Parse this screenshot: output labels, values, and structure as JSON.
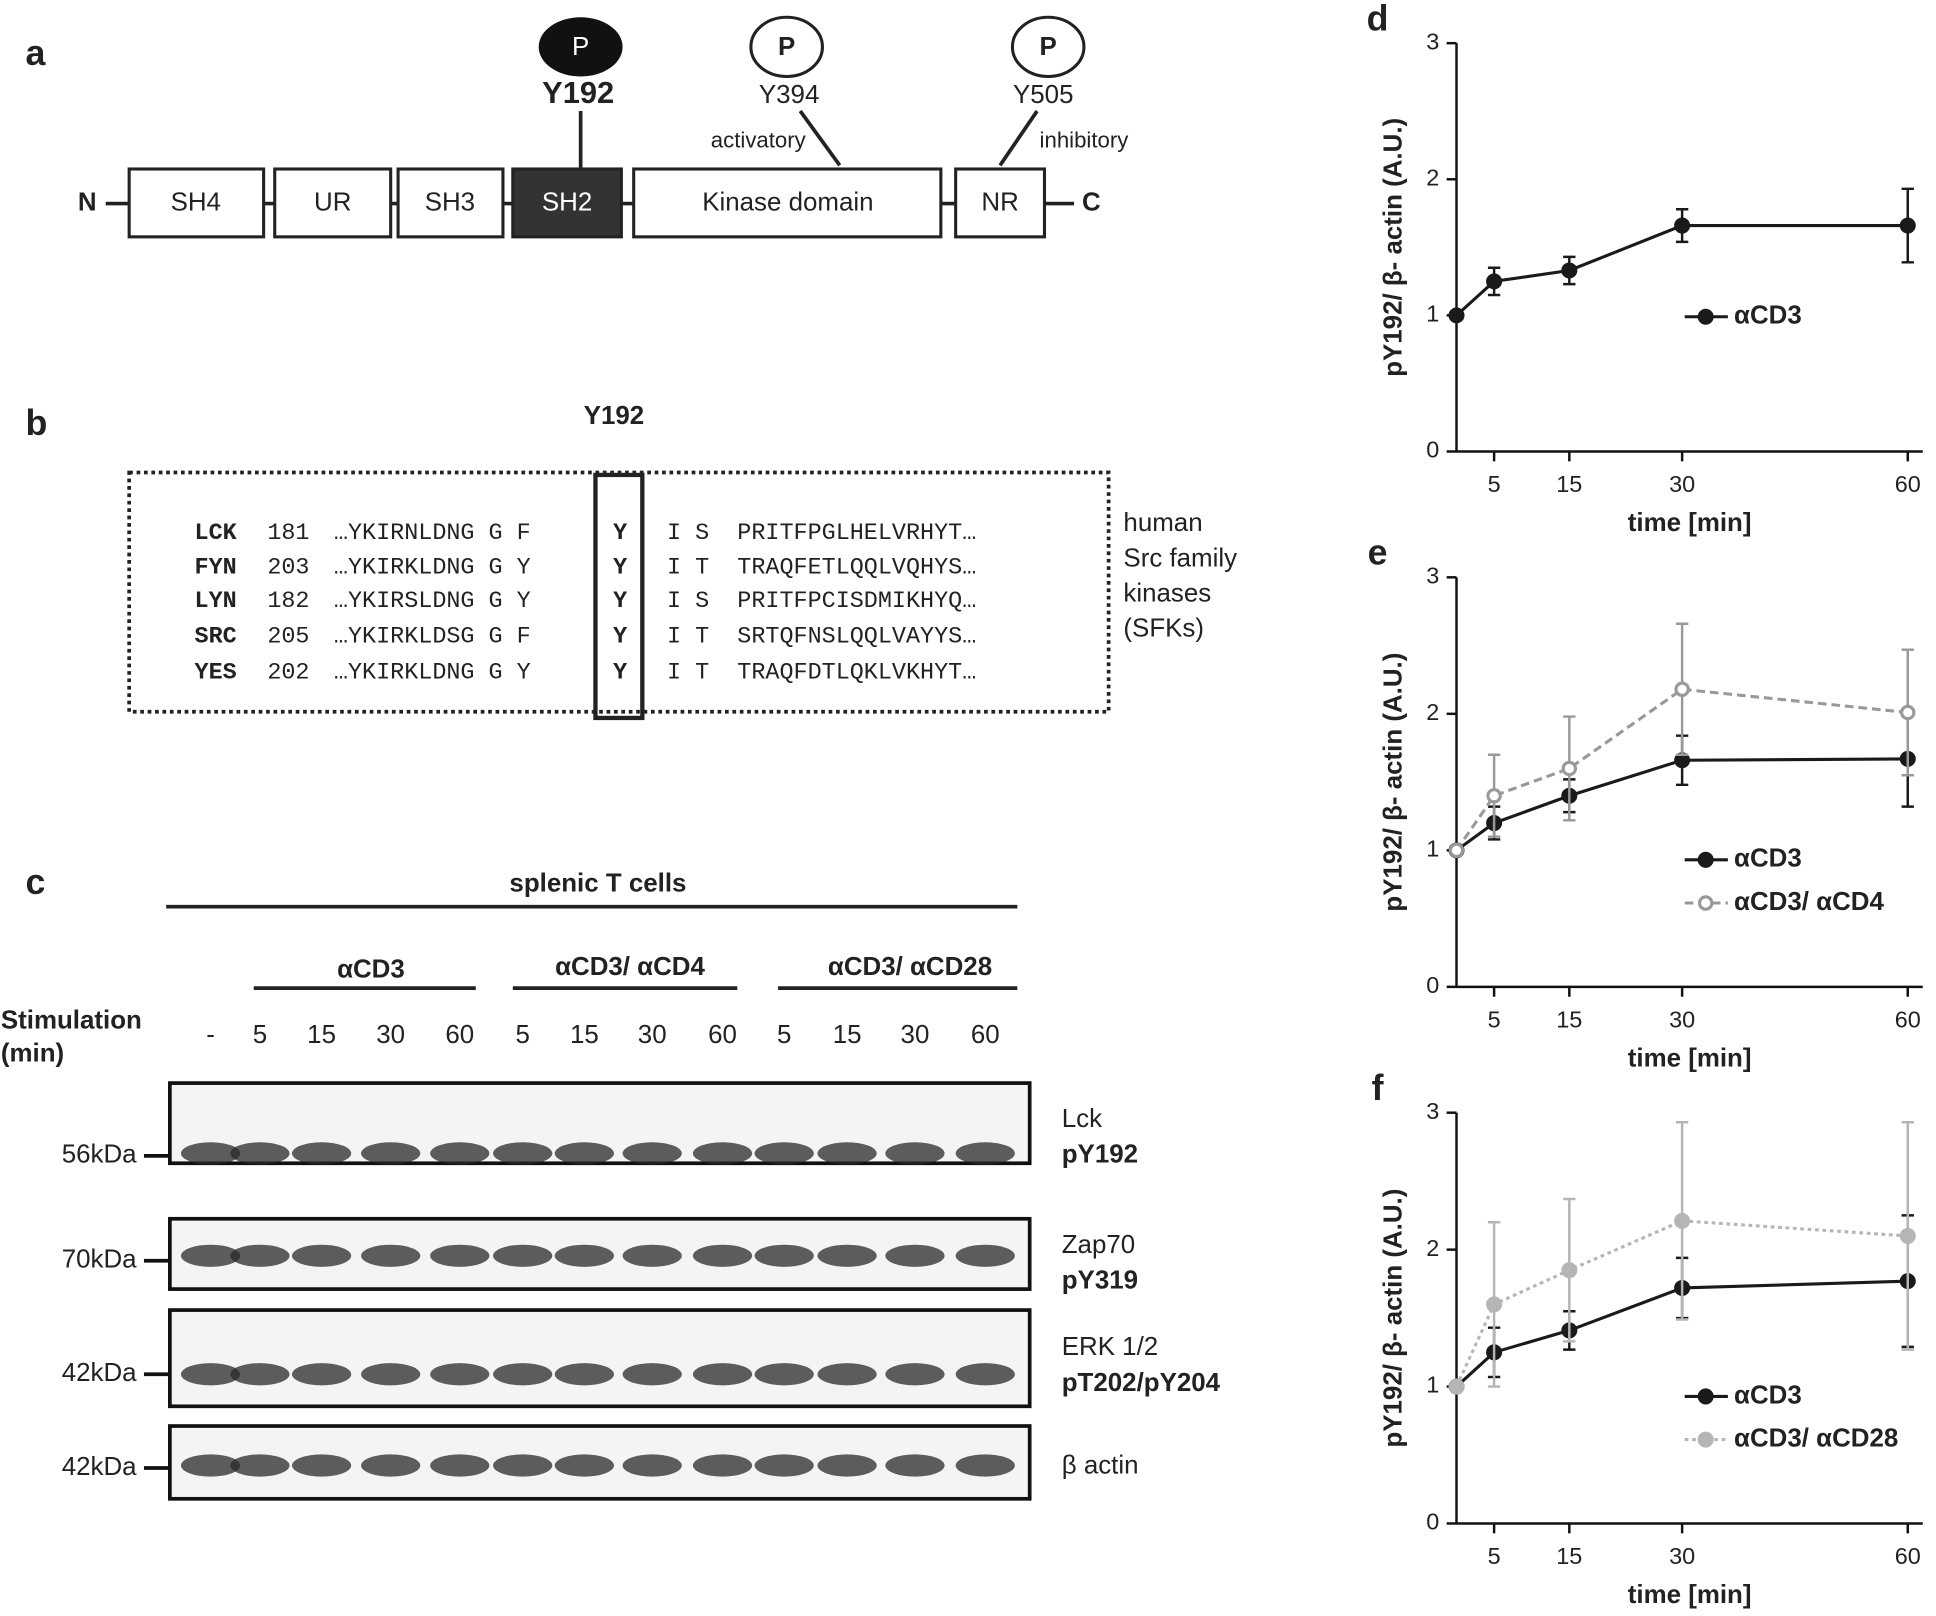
{
  "panel_a": {
    "label": "a",
    "n_terminus": "N",
    "c_terminus": "C",
    "domains": [
      "SH4",
      "UR",
      "SH3",
      "SH2",
      "Kinase domain",
      "NR"
    ],
    "sites": [
      {
        "mark": "P",
        "residue": "Y192"
      },
      {
        "mark": "P",
        "residue": "Y394",
        "effect": "activatory"
      },
      {
        "mark": "P",
        "residue": "Y505",
        "effect": "inhibitory"
      }
    ]
  },
  "panel_b": {
    "label": "b",
    "residue": "Y192",
    "rows": [
      {
        "kinase": "LCK",
        "start": 181,
        "left": "…YKIRNLDNG G F",
        "site": "Y",
        "right": "I S",
        "tail": "PRITFPGLHELVRHYT…"
      },
      {
        "kinase": "FYN",
        "start": 203,
        "left": "…YKIRKLDNG G Y",
        "site": "Y",
        "right": "I T",
        "tail": "TRAQFETLQQLVQHYS…"
      },
      {
        "kinase": "LYN",
        "start": 182,
        "left": "…YKIRSLDNG G Y",
        "site": "Y",
        "right": "I S",
        "tail": "PRITFPCISDMIKHYQ…"
      },
      {
        "kinase": "SRC",
        "start": 205,
        "left": "…YKIRKLDSG G F",
        "site": "Y",
        "right": "I T",
        "tail": "SRTQFNSLQQLVAYYS…"
      },
      {
        "kinase": "YES",
        "start": 202,
        "left": "…YKIRKLDNG G Y",
        "site": "Y",
        "right": "I T",
        "tail": "TRAQFDTLQKLVKHYT…"
      }
    ],
    "note": [
      "human",
      "Src family",
      "kinases",
      "(SFKs)"
    ]
  },
  "panel_c": {
    "label": "c",
    "title": "splenic T cells",
    "groups": [
      "αCD3",
      "αCD3/ αCD4",
      "αCD3/ αCD28"
    ],
    "stimulation": [
      "Stimulation",
      "(min)"
    ],
    "times": [
      "-",
      "5",
      "15",
      "30",
      "60",
      "5",
      "15",
      "30",
      "60",
      "5",
      "15",
      "30",
      "60"
    ],
    "blots": [
      {
        "weight": "56kDa",
        "target": "Lck",
        "site": "pY192"
      },
      {
        "weight": "70kDa",
        "target": "Zap70",
        "site": "pY319"
      },
      {
        "weight": "42kDa",
        "target": "ERK 1/2",
        "site": "pT202/pY204"
      },
      {
        "weight": "42kDa",
        "target": "β actin"
      }
    ]
  },
  "chart_data": [
    {
      "type": "line",
      "label": "d",
      "x_label": "time [min]",
      "y_label": "pY192/ β- actin (A.U.)",
      "x": [
        0,
        5,
        15,
        30,
        60
      ],
      "xlim": [
        0,
        62
      ],
      "xticks": [
        5,
        15,
        30,
        60
      ],
      "ylim": [
        0,
        3
      ],
      "yticks": [
        0,
        1,
        2,
        3
      ],
      "legend": "center-right",
      "series": [
        {
          "name": "αCD3",
          "color": "#1a1a1a",
          "line_style": "solid",
          "marker": "filled",
          "values": [
            1,
            1.25,
            1.33,
            1.66,
            1.66
          ],
          "errors": [
            null,
            0.1,
            0.1,
            0.12,
            0.27
          ]
        }
      ]
    },
    {
      "type": "line",
      "label": "e",
      "x_label": "time [min]",
      "y_label": "pY192/ β- actin (A.U.)",
      "x": [
        0,
        5,
        15,
        30,
        60
      ],
      "xlim": [
        0,
        62
      ],
      "xticks": [
        5,
        15,
        30,
        60
      ],
      "ylim": [
        0,
        3
      ],
      "yticks": [
        0,
        1,
        2,
        3
      ],
      "legend": "lower-right",
      "series": [
        {
          "name": "αCD3",
          "color": "#1a1a1a",
          "line_style": "solid",
          "marker": "filled",
          "values": [
            1,
            1.2,
            1.4,
            1.66,
            1.67
          ],
          "errors": [
            null,
            0.12,
            0.12,
            0.18,
            0.35
          ]
        },
        {
          "name": "αCD3/ αCD4",
          "color": "#999999",
          "line_style": "dashed",
          "marker": "hollow",
          "values": [
            1,
            1.4,
            1.6,
            2.18,
            2.01
          ],
          "errors": [
            null,
            0.3,
            0.38,
            0.48,
            0.46
          ]
        }
      ]
    },
    {
      "type": "line",
      "label": "f",
      "x_label": "time [min]",
      "y_label": "pY192/ β- actin (A.U.)",
      "x": [
        0,
        5,
        15,
        30,
        60
      ],
      "xlim": [
        0,
        62
      ],
      "xticks": [
        5,
        15,
        30,
        60
      ],
      "ylim": [
        0,
        3
      ],
      "yticks": [
        0,
        1,
        2,
        3
      ],
      "legend": "lower-right",
      "series": [
        {
          "name": "αCD3",
          "color": "#1a1a1a",
          "line_style": "solid",
          "marker": "filled",
          "values": [
            1,
            1.25,
            1.41,
            1.72,
            1.77
          ],
          "errors": [
            null,
            0.18,
            0.14,
            0.22,
            0.48
          ]
        },
        {
          "name": "αCD3/ αCD28",
          "color": "#b5b5b5",
          "line_style": "dotted",
          "marker": "filled",
          "values": [
            1,
            1.6,
            1.85,
            2.21,
            2.1
          ],
          "errors": [
            null,
            0.6,
            0.52,
            0.72,
            0.83
          ]
        }
      ]
    }
  ]
}
